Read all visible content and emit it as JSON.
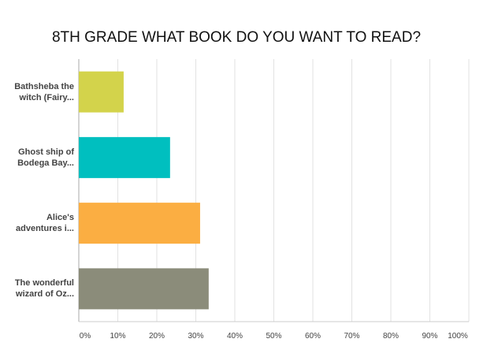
{
  "chart_data": {
    "type": "bar",
    "orientation": "horizontal",
    "title": "8TH GRADE WHAT BOOK DO YOU WANT TO READ?",
    "categories": [
      "Bathsheba the witch (Fairy...",
      "Ghost ship of Bodega Bay...",
      "Alice's adventures i...",
      "The wonderful wizard of Oz..."
    ],
    "values": [
      11.5,
      23.4,
      31.1,
      33.3
    ],
    "colors": [
      "#d3d34b",
      "#00bfbf",
      "#fbae42",
      "#8b8c7a"
    ],
    "xlim": [
      0,
      100
    ],
    "xticks": [
      {
        "value": 0,
        "label": "0%"
      },
      {
        "value": 10,
        "label": "10%"
      },
      {
        "value": 20,
        "label": "20%"
      },
      {
        "value": 30,
        "label": "30%"
      },
      {
        "value": 40,
        "label": "40%"
      },
      {
        "value": 50,
        "label": "50%"
      },
      {
        "value": 60,
        "label": "60%"
      },
      {
        "value": 70,
        "label": "70%"
      },
      {
        "value": 80,
        "label": "80%"
      },
      {
        "value": 90,
        "label": "90%"
      },
      {
        "value": 100,
        "label": "100%"
      }
    ],
    "grid": true
  }
}
